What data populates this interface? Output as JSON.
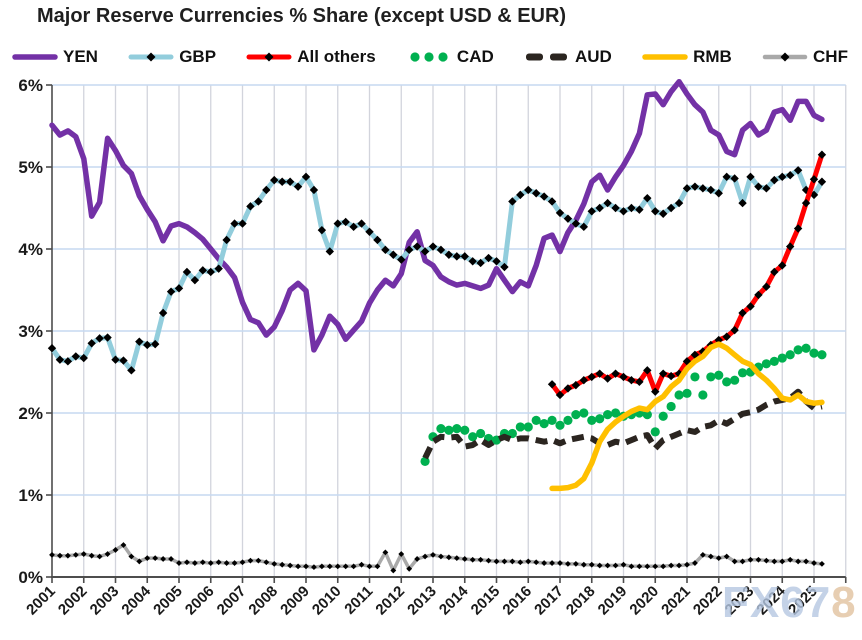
{
  "watermark": {
    "text_primary": "FX67",
    "text_accent": "8"
  },
  "chart_data": {
    "type": "line",
    "title": "Major Reserve Currencies % Share (except USD & EUR)",
    "legend_position": "top",
    "grid": true,
    "x_axis": {
      "tick_labels": [
        "2001",
        "2002",
        "2003",
        "2004",
        "2005",
        "2006",
        "2007",
        "2008",
        "2009",
        "2010",
        "2011",
        "2012",
        "2013",
        "2014",
        "2015",
        "2016",
        "2017",
        "2018",
        "2019",
        "2020",
        "2021",
        "2022",
        "2023",
        "2024",
        "2025"
      ],
      "start_year": 2001,
      "end_year_edge": 2026,
      "step_per_point_years": 0.25
    },
    "y_axis": {
      "tick_labels": [
        "0%",
        "1%",
        "2%",
        "3%",
        "4%",
        "5%",
        "6%"
      ],
      "min": 0,
      "max": 6,
      "unit": "%"
    },
    "series": [
      {
        "name": "YEN",
        "color": "#7331A6",
        "style": "solid-thick",
        "start_x": 2001.0,
        "values": [
          5.51,
          5.39,
          5.44,
          5.37,
          5.1,
          4.4,
          4.57,
          5.35,
          5.2,
          5.02,
          4.92,
          4.65,
          4.48,
          4.33,
          4.1,
          4.28,
          4.31,
          4.27,
          4.2,
          4.12,
          4.0,
          3.88,
          3.78,
          3.65,
          3.35,
          3.14,
          3.1,
          2.95,
          3.05,
          3.25,
          3.5,
          3.58,
          3.49,
          2.77,
          2.95,
          3.18,
          3.08,
          2.9,
          3.01,
          3.12,
          3.34,
          3.5,
          3.62,
          3.55,
          3.7,
          4.08,
          4.21,
          3.86,
          3.8,
          3.66,
          3.6,
          3.56,
          3.58,
          3.55,
          3.52,
          3.56,
          3.76,
          3.62,
          3.48,
          3.6,
          3.55,
          3.8,
          4.13,
          4.17,
          3.97,
          4.2,
          4.35,
          4.55,
          4.82,
          4.9,
          4.72,
          4.88,
          5.02,
          5.19,
          5.41,
          5.88,
          5.89,
          5.76,
          5.92,
          6.04,
          5.89,
          5.76,
          5.67,
          5.45,
          5.39,
          5.19,
          5.15,
          5.45,
          5.53,
          5.39,
          5.45,
          5.67,
          5.7,
          5.57,
          5.8,
          5.8,
          5.63,
          5.58
        ]
      },
      {
        "name": "GBP",
        "color": "#92CDDC",
        "style": "solid-diamond",
        "marker_color": "#000000",
        "start_x": 2001.0,
        "values": [
          2.79,
          2.65,
          2.63,
          2.69,
          2.67,
          2.85,
          2.91,
          2.92,
          2.65,
          2.64,
          2.52,
          2.87,
          2.83,
          2.84,
          3.22,
          3.48,
          3.52,
          3.72,
          3.62,
          3.74,
          3.72,
          3.76,
          4.11,
          4.31,
          4.31,
          4.52,
          4.58,
          4.72,
          4.84,
          4.82,
          4.82,
          4.76,
          4.88,
          4.72,
          4.23,
          3.97,
          4.31,
          4.33,
          4.27,
          4.31,
          4.21,
          4.11,
          3.99,
          3.93,
          3.87,
          3.99,
          4.03,
          3.97,
          4.03,
          3.99,
          3.93,
          3.91,
          3.91,
          3.85,
          3.83,
          3.89,
          3.85,
          3.78,
          4.58,
          4.66,
          4.72,
          4.68,
          4.64,
          4.58,
          4.44,
          4.37,
          4.31,
          4.27,
          4.46,
          4.5,
          4.56,
          4.5,
          4.46,
          4.5,
          4.48,
          4.62,
          4.46,
          4.43,
          4.5,
          4.56,
          4.74,
          4.76,
          4.74,
          4.72,
          4.68,
          4.88,
          4.86,
          4.56,
          4.88,
          4.76,
          4.74,
          4.84,
          4.88,
          4.9,
          4.96,
          4.72,
          4.66,
          4.82
        ]
      },
      {
        "name": "All others",
        "color": "#FF0000",
        "style": "solid-diamond",
        "marker_color": "#000000",
        "start_x": 2016.75,
        "values": [
          2.35,
          2.22,
          2.3,
          2.34,
          2.4,
          2.44,
          2.48,
          2.42,
          2.48,
          2.44,
          2.4,
          2.38,
          2.52,
          2.26,
          2.48,
          2.45,
          2.48,
          2.63,
          2.71,
          2.75,
          2.83,
          2.89,
          2.93,
          3.01,
          3.22,
          3.3,
          3.44,
          3.54,
          3.72,
          3.8,
          4.03,
          4.25,
          4.56,
          4.85,
          5.15
        ]
      },
      {
        "name": "CAD",
        "color": "#00B050",
        "style": "dots",
        "start_x": 2012.75,
        "values": [
          1.41,
          1.71,
          1.81,
          1.79,
          1.81,
          1.79,
          1.71,
          1.75,
          1.69,
          1.67,
          1.75,
          1.75,
          1.83,
          1.83,
          1.91,
          1.87,
          1.91,
          1.85,
          1.91,
          1.98,
          2.0,
          1.91,
          1.93,
          1.98,
          2.0,
          1.96,
          1.98,
          2.0,
          1.98,
          1.77,
          1.96,
          2.08,
          2.22,
          2.24,
          2.44,
          2.22,
          2.44,
          2.46,
          2.38,
          2.4,
          2.49,
          2.5,
          2.56,
          2.6,
          2.63,
          2.67,
          2.71,
          2.77,
          2.79,
          2.73,
          2.71
        ]
      },
      {
        "name": "AUD",
        "color": "#2B2520",
        "style": "dashed",
        "start_x": 2012.75,
        "values": [
          1.45,
          1.65,
          1.71,
          1.7,
          1.71,
          1.59,
          1.61,
          1.67,
          1.61,
          1.67,
          1.71,
          1.67,
          1.69,
          1.69,
          1.67,
          1.65,
          1.67,
          1.63,
          1.67,
          1.69,
          1.71,
          1.69,
          1.63,
          1.61,
          1.65,
          1.63,
          1.67,
          1.71,
          1.73,
          1.57,
          1.67,
          1.71,
          1.75,
          1.79,
          1.77,
          1.83,
          1.85,
          1.91,
          1.87,
          1.93,
          1.99,
          2.01,
          2.04,
          2.1,
          2.14,
          2.16,
          2.18,
          2.26,
          2.14,
          2.06,
          2.08
        ]
      },
      {
        "name": "RMB",
        "color": "#FFC000",
        "style": "solid-thick",
        "start_x": 2016.75,
        "values": [
          1.08,
          1.08,
          1.09,
          1.12,
          1.2,
          1.39,
          1.65,
          1.8,
          1.89,
          1.96,
          2.02,
          2.06,
          2.04,
          2.14,
          2.2,
          2.32,
          2.4,
          2.54,
          2.63,
          2.69,
          2.8,
          2.84,
          2.79,
          2.71,
          2.63,
          2.59,
          2.48,
          2.4,
          2.3,
          2.18,
          2.16,
          2.22,
          2.14,
          2.12,
          2.13
        ]
      },
      {
        "name": "CHF",
        "color": "#A9A9A9",
        "style": "thin-diamond",
        "marker_color": "#000000",
        "start_x": 2001.0,
        "values": [
          0.27,
          0.26,
          0.26,
          0.27,
          0.28,
          0.26,
          0.25,
          0.28,
          0.33,
          0.39,
          0.25,
          0.19,
          0.23,
          0.23,
          0.22,
          0.22,
          0.17,
          0.18,
          0.17,
          0.18,
          0.17,
          0.18,
          0.17,
          0.17,
          0.18,
          0.2,
          0.2,
          0.18,
          0.16,
          0.15,
          0.14,
          0.13,
          0.13,
          0.12,
          0.13,
          0.13,
          0.13,
          0.13,
          0.13,
          0.15,
          0.13,
          0.13,
          0.3,
          0.08,
          0.28,
          0.1,
          0.22,
          0.25,
          0.27,
          0.25,
          0.24,
          0.23,
          0.22,
          0.21,
          0.21,
          0.2,
          0.19,
          0.19,
          0.19,
          0.18,
          0.19,
          0.18,
          0.17,
          0.17,
          0.17,
          0.16,
          0.16,
          0.15,
          0.15,
          0.14,
          0.14,
          0.14,
          0.15,
          0.13,
          0.13,
          0.13,
          0.13,
          0.13,
          0.14,
          0.14,
          0.15,
          0.17,
          0.27,
          0.25,
          0.23,
          0.25,
          0.19,
          0.19,
          0.21,
          0.21,
          0.2,
          0.19,
          0.19,
          0.21,
          0.19,
          0.19,
          0.17,
          0.16
        ]
      }
    ],
    "colors": {
      "h_gridline": "#C6D9F1",
      "v_gridline": "#D2D4DC",
      "axis": "#4d4d4d",
      "tick_text": "#1a1a1a"
    }
  }
}
